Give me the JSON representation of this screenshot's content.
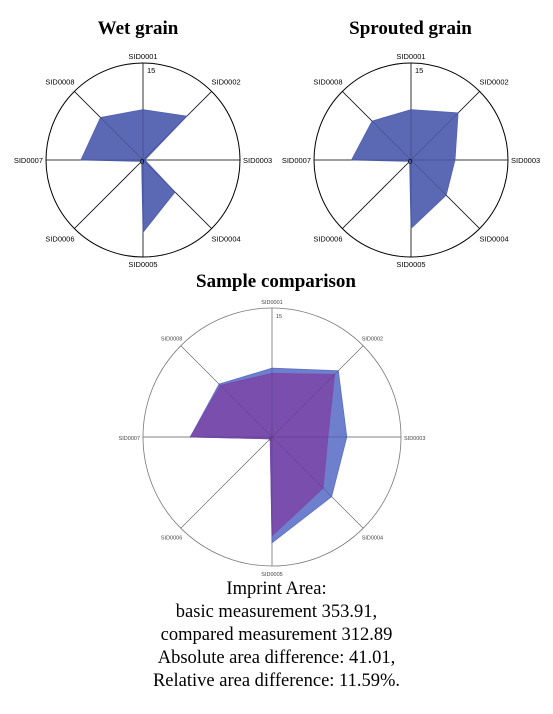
{
  "chart_data": [
    {
      "type": "radar",
      "title": "Wet grain",
      "axes": [
        "SID0001",
        "SID0002",
        "SID0003",
        "SID0004",
        "SID0005",
        "SID0006",
        "SID0007",
        "SID0008"
      ],
      "rmax": 15,
      "ticks": [
        "15",
        "0"
      ],
      "series": [
        {
          "values": [
            7.8,
            9.6,
            0.3,
            7.0,
            11.2,
            0.3,
            9.6,
            9.3
          ],
          "color": "#5261b0"
        }
      ]
    },
    {
      "type": "radar",
      "title": "Sprouted grain",
      "axes": [
        "SID0001",
        "SID0002",
        "SID0003",
        "SID0004",
        "SID0005",
        "SID0006",
        "SID0007",
        "SID0008"
      ],
      "rmax": 15,
      "ticks": [
        "15",
        "0"
      ],
      "series": [
        {
          "values": [
            7.8,
            10.3,
            6.8,
            7.7,
            10.6,
            0.3,
            9.2,
            8.5
          ],
          "color": "#5261b0"
        }
      ]
    },
    {
      "type": "radar",
      "title": "Sample comparison",
      "axes": [
        "SID0001",
        "SID0002",
        "SID0003",
        "SID0004",
        "SID0005",
        "SID0006",
        "SID0007",
        "SID0008"
      ],
      "rmax": 15,
      "ticks": [
        "15",
        "0"
      ],
      "series": [
        {
          "values": [
            8.0,
            10.9,
            8.7,
            9.8,
            12.3,
            0.3,
            9.5,
            8.7
          ],
          "color": "#5a6ec6"
        },
        {
          "values": [
            7.4,
            10.3,
            6.5,
            8.4,
            11.5,
            0.3,
            9.5,
            8.5
          ],
          "color": "#7c47a8"
        }
      ]
    }
  ],
  "summary": {
    "line1": "Imprint Area:",
    "line2": "basic measurement 353.91,",
    "line3": "compared measurement 312.89",
    "line4": "Absolute area difference: 41.01,",
    "line5": "Relative area difference: 11.59%."
  }
}
